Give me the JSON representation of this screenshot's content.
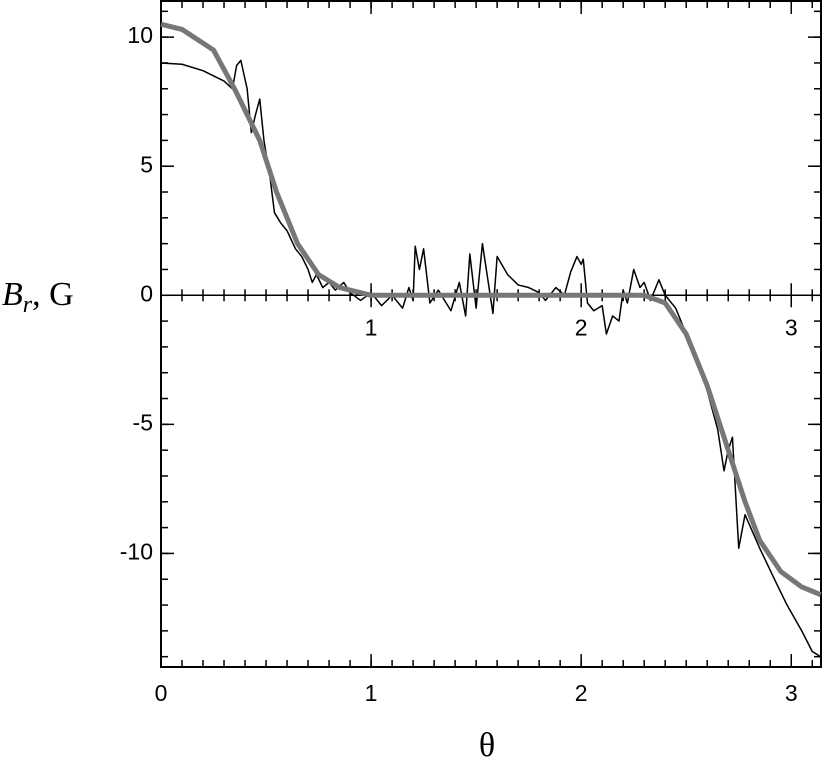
{
  "chart_data": {
    "type": "line",
    "xlabel": "θ",
    "ylabel": "B",
    "ylabel_sub": "r",
    "ylabel_unit": ", G",
    "xlim": [
      0,
      3.1416
    ],
    "ylim": [
      -14.4,
      11.4
    ],
    "xticks": [
      0,
      1,
      2,
      3
    ],
    "yticks": [
      -10,
      -5,
      0,
      5,
      10
    ],
    "xminor": 0.1,
    "yminor": 1,
    "zero_line": true,
    "series": [
      {
        "color": "#000000",
        "width": 1.5,
        "x": [
          0,
          0.1,
          0.2,
          0.3,
          0.34,
          0.36,
          0.38,
          0.41,
          0.43,
          0.45,
          0.47,
          0.49,
          0.52,
          0.54,
          0.57,
          0.6,
          0.64,
          0.67,
          0.7,
          0.72,
          0.74,
          0.77,
          0.8,
          0.83,
          0.87,
          0.9,
          0.95,
          1.0,
          1.05,
          1.1,
          1.15,
          1.18,
          1.2,
          1.21,
          1.23,
          1.25,
          1.28,
          1.32,
          1.38,
          1.42,
          1.45,
          1.47,
          1.5,
          1.53,
          1.58,
          1.6,
          1.65,
          1.7,
          1.75,
          1.8,
          1.83,
          1.88,
          1.92,
          1.95,
          1.98,
          2.0,
          2.01,
          2.03,
          2.06,
          2.1,
          2.12,
          2.15,
          2.18,
          2.2,
          2.22,
          2.25,
          2.28,
          2.3,
          2.33,
          2.37,
          2.4,
          2.45,
          2.5,
          2.55,
          2.6,
          2.65,
          2.68,
          2.7,
          2.72,
          2.75,
          2.78,
          2.85,
          2.92,
          2.98,
          3.05,
          3.1,
          3.14
        ],
        "values": [
          9.0,
          8.95,
          8.7,
          8.3,
          8.0,
          8.9,
          9.1,
          8.0,
          6.3,
          7.0,
          7.6,
          6.0,
          4.5,
          3.2,
          2.8,
          2.5,
          1.8,
          1.5,
          1.0,
          0.5,
          0.8,
          0.3,
          0.5,
          0.2,
          0.5,
          0.1,
          -0.2,
          0.1,
          -0.4,
          0,
          -0.5,
          0.3,
          -0.2,
          1.9,
          1.0,
          1.8,
          -0.3,
          0.2,
          -0.6,
          0.5,
          -0.8,
          1.6,
          -0.5,
          2.0,
          -0.7,
          1.5,
          0.8,
          0.4,
          0.3,
          0.1,
          -0.2,
          0.3,
          0,
          0.9,
          1.5,
          1.2,
          1.4,
          -0.3,
          -0.6,
          -0.4,
          -1.5,
          -0.8,
          -1.0,
          0.2,
          -0.3,
          1.0,
          0.3,
          0.5,
          -0.2,
          0.6,
          0,
          -0.5,
          -1.5,
          -2.5,
          -3.7,
          -5.2,
          -6.8,
          -6.0,
          -5.5,
          -9.8,
          -8.5,
          -9.8,
          -11,
          -12,
          -13,
          -13.8,
          -14
        ]
      },
      {
        "color": "#777777",
        "width": 5,
        "x": [
          0,
          0.1,
          0.25,
          0.35,
          0.47,
          0.55,
          0.65,
          0.75,
          0.85,
          0.95,
          1.0,
          1.5,
          2.0,
          2.3,
          2.4,
          2.5,
          2.6,
          2.7,
          2.78,
          2.85,
          2.95,
          3.05,
          3.14
        ],
        "values": [
          10.5,
          10.3,
          9.5,
          8,
          6,
          4,
          2,
          0.8,
          0.3,
          0.1,
          0,
          0,
          0,
          0,
          -0.3,
          -1.5,
          -3.5,
          -6,
          -8,
          -9.5,
          -10.7,
          -11.3,
          -11.6
        ]
      }
    ]
  }
}
